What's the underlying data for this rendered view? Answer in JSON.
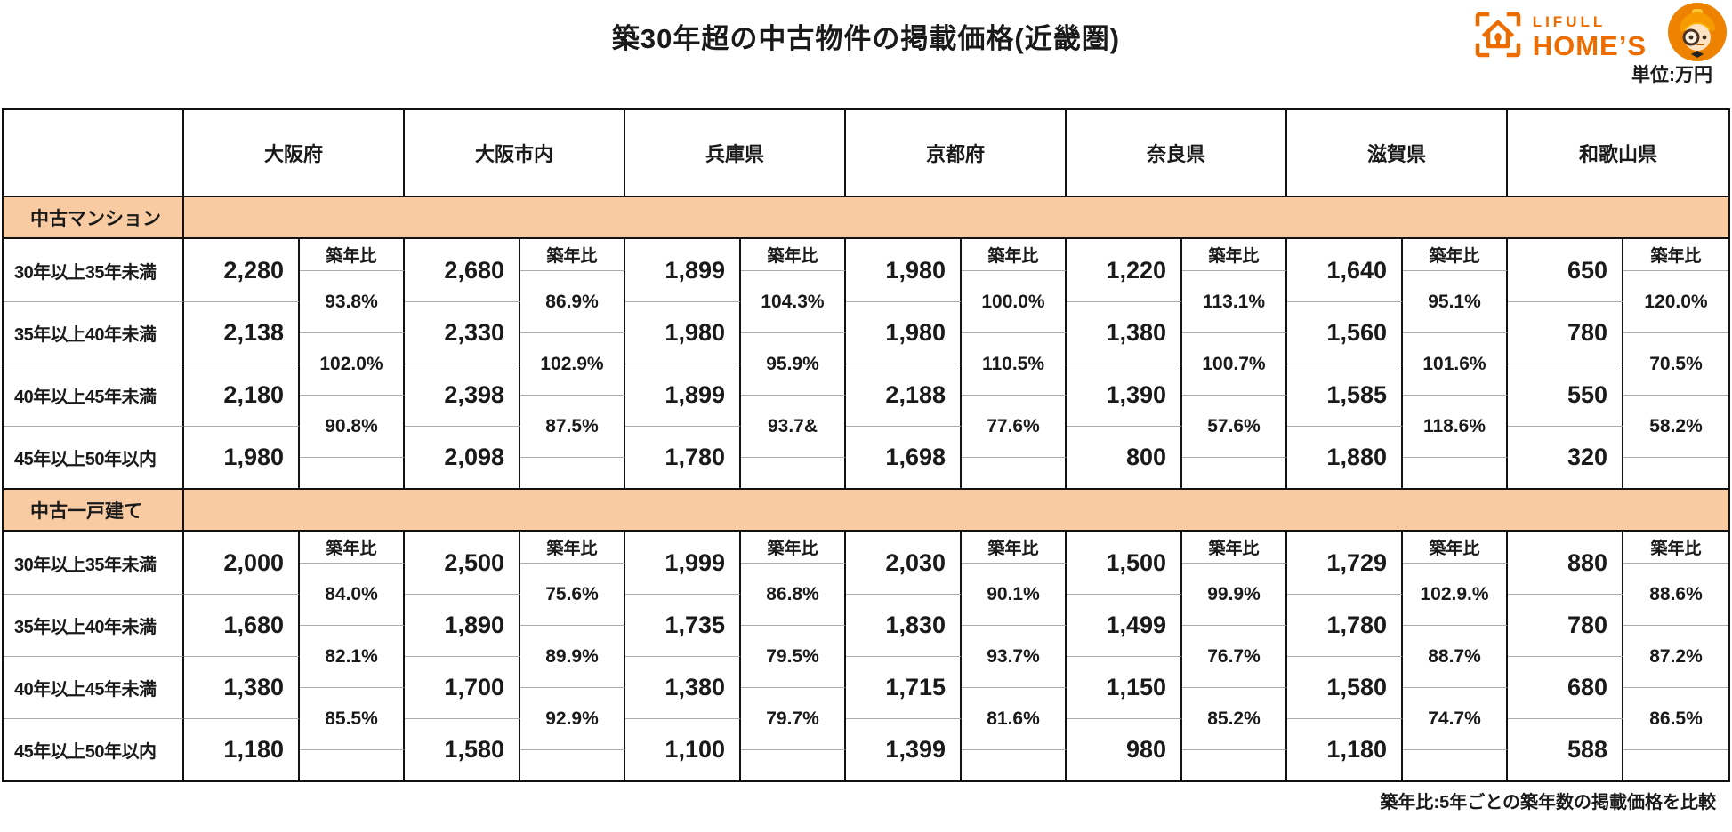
{
  "logo": {
    "lifull": "LIFULL",
    "homes": "HOME’S",
    "brand_color": "#ED6C00",
    "icons": [
      "house-brackets-icon",
      "mascot-icon"
    ]
  },
  "chart_data": {
    "type": "table",
    "title": "築30年超の中古物件の掲載価格(近畿圏)",
    "unit_label": "単位:万円",
    "note": "築年比:5年ごとの築年数の掲載価格を比較",
    "ratio_header": "築年比",
    "columns": [
      "大阪府",
      "大阪市内",
      "兵庫県",
      "京都府",
      "奈良県",
      "滋賀県",
      "和歌山県"
    ],
    "row_labels": [
      "30年以上35年未満",
      "35年以上40年未満",
      "40年以上45年未満",
      "45年以上50年以内"
    ],
    "colors": {
      "band": "#F9CBA3",
      "border": "#111111",
      "grid_line": "#ACACAC"
    },
    "sections": [
      {
        "label": "中古マンション",
        "columns": [
          {
            "name": "大阪府",
            "prices": [
              "2,280",
              "2,138",
              "2,180",
              "1,980"
            ],
            "ratios": [
              "93.8%",
              "102.0%",
              "90.8%"
            ]
          },
          {
            "name": "大阪市内",
            "prices": [
              "2,680",
              "2,330",
              "2,398",
              "2,098"
            ],
            "ratios": [
              "86.9%",
              "102.9%",
              "87.5%"
            ]
          },
          {
            "name": "兵庫県",
            "prices": [
              "1,899",
              "1,980",
              "1,899",
              "1,780"
            ],
            "ratios": [
              "104.3%",
              "95.9%",
              "93.7&"
            ]
          },
          {
            "name": "京都府",
            "prices": [
              "1,980",
              "1,980",
              "2,188",
              "1,698"
            ],
            "ratios": [
              "100.0%",
              "110.5%",
              "77.6%"
            ]
          },
          {
            "name": "奈良県",
            "prices": [
              "1,220",
              "1,380",
              "1,390",
              "800"
            ],
            "ratios": [
              "113.1%",
              "100.7%",
              "57.6%"
            ]
          },
          {
            "name": "滋賀県",
            "prices": [
              "1,640",
              "1,560",
              "1,585",
              "1,880"
            ],
            "ratios": [
              "95.1%",
              "101.6%",
              "118.6%"
            ]
          },
          {
            "name": "和歌山県",
            "prices": [
              "650",
              "780",
              "550",
              "320"
            ],
            "ratios": [
              "120.0%",
              "70.5%",
              "58.2%"
            ]
          }
        ]
      },
      {
        "label": "中古一戸建て",
        "columns": [
          {
            "name": "大阪府",
            "prices": [
              "2,000",
              "1,680",
              "1,380",
              "1,180"
            ],
            "ratios": [
              "84.0%",
              "82.1%",
              "85.5%"
            ]
          },
          {
            "name": "大阪市内",
            "prices": [
              "2,500",
              "1,890",
              "1,700",
              "1,580"
            ],
            "ratios": [
              "75.6%",
              "89.9%",
              "92.9%"
            ]
          },
          {
            "name": "兵庫県",
            "prices": [
              "1,999",
              "1,735",
              "1,380",
              "1,100"
            ],
            "ratios": [
              "86.8%",
              "79.5%",
              "79.7%"
            ]
          },
          {
            "name": "京都府",
            "prices": [
              "2,030",
              "1,830",
              "1,715",
              "1,399"
            ],
            "ratios": [
              "90.1%",
              "93.7%",
              "81.6%"
            ]
          },
          {
            "name": "奈良県",
            "prices": [
              "1,500",
              "1,499",
              "1,150",
              "980"
            ],
            "ratios": [
              "99.9%",
              "76.7%",
              "85.2%"
            ]
          },
          {
            "name": "滋賀県",
            "prices": [
              "1,729",
              "1,780",
              "1,580",
              "1,180"
            ],
            "ratios": [
              "102.9.%",
              "88.7%",
              "74.7%"
            ]
          },
          {
            "name": "和歌山県",
            "prices": [
              "880",
              "780",
              "680",
              "588"
            ],
            "ratios": [
              "88.6%",
              "87.2%",
              "86.5%"
            ]
          }
        ]
      }
    ]
  }
}
